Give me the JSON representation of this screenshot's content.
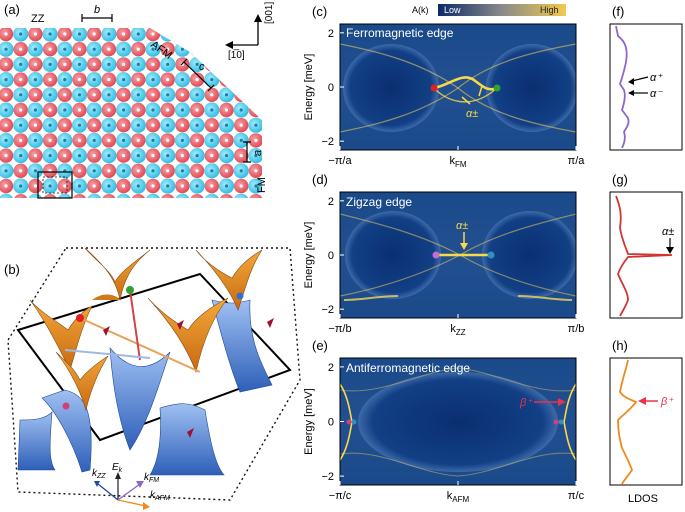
{
  "panels": {
    "a": {
      "label": "(a)",
      "zz_label": "ZZ",
      "b_label": "b",
      "afm_label": "AFM",
      "c_label": "c",
      "fm_label": "FM",
      "a_label": "a",
      "dir_vertical": "[001]",
      "dir_horizontal": "[1̅0]",
      "colors": {
        "red": "#e8525b",
        "blue": "#3fc6e6"
      }
    },
    "b": {
      "label": "(b)",
      "axis_kzz": "k",
      "axis_kzz_sub": "ZZ",
      "axis_ek": "E",
      "axis_ek_sub": "k",
      "axis_kfm": "k",
      "axis_kfm_sub": "FM",
      "axis_kafm": "k",
      "axis_kafm_sub": "AFM",
      "colors": {
        "upper_cone": "#e58a1f",
        "lower_cone": "#4b7fd1"
      }
    },
    "c": {
      "label": "(c)",
      "title": "Ferromagnetic edge",
      "ylabel": "Energy [meV]",
      "yticks": [
        "2",
        "0",
        "−2"
      ],
      "xticks": [
        "−π/a",
        "k",
        "π/a"
      ],
      "x_mid_sub": "FM",
      "annotation": "α±"
    },
    "d": {
      "label": "(d)",
      "title": "Zigzag edge",
      "ylabel": "Energy [meV]",
      "yticks": [
        "2",
        "0",
        "−2"
      ],
      "xticks": [
        "−π/b",
        "k",
        "π/b"
      ],
      "x_mid_sub": "ZZ",
      "annotation": "α±"
    },
    "e": {
      "label": "(e)",
      "title": "Antiferromagnetic edge",
      "ylabel": "Energy [meV]",
      "yticks": [
        "2",
        "0",
        "−2"
      ],
      "xticks": [
        "−π/c",
        "k",
        "π/c"
      ],
      "x_mid_sub": "AFM",
      "annotation": "β⁺"
    },
    "f": {
      "label": "(f)",
      "ann1": "α⁺",
      "ann2": "α⁻"
    },
    "g": {
      "label": "(g)",
      "ann1": "α±"
    },
    "h": {
      "label": "(h)",
      "ann1": "β⁺",
      "xlabel": "LDOS"
    }
  },
  "colorbar": {
    "title": "A(k)",
    "low": "Low",
    "high": "High",
    "colors": {
      "low": "#0b2a66",
      "mid": "#8a8a8a",
      "high": "#f2c94c"
    }
  },
  "ldos_colors": {
    "f": "#8e66c9",
    "g": "#d0362f",
    "h": "#ee8a1d"
  },
  "spectral_colors": {
    "background": "#143a7a",
    "bulk": "#0c2f6e",
    "band": "#f2d35a",
    "edge_state": "#f7d94a"
  }
}
